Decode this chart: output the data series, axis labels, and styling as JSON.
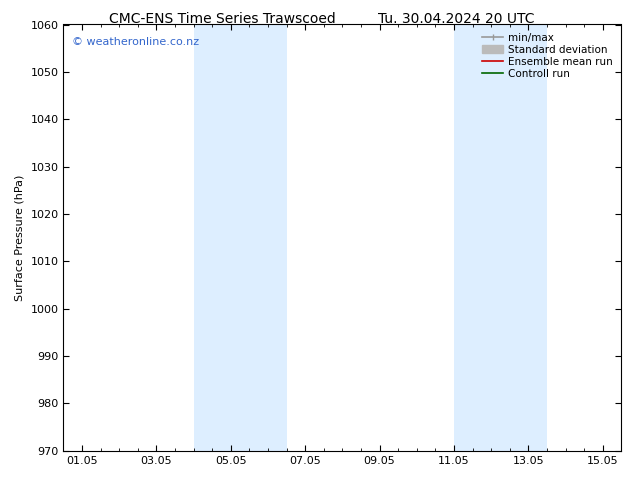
{
  "title_left": "CMC-ENS Time Series Trawscoed",
  "title_right": "Tu. 30.04.2024 20 UTC",
  "ylabel": "Surface Pressure (hPa)",
  "ylim": [
    970,
    1060
  ],
  "yticks": [
    970,
    980,
    990,
    1000,
    1010,
    1020,
    1030,
    1040,
    1050,
    1060
  ],
  "xtick_labels": [
    "01.05",
    "03.05",
    "05.05",
    "07.05",
    "09.05",
    "11.05",
    "13.05",
    "15.05"
  ],
  "xtick_positions": [
    0,
    2,
    4,
    6,
    8,
    10,
    12,
    14
  ],
  "xlim": [
    -0.5,
    14.5
  ],
  "shaded_bands": [
    {
      "x_start": 3.0,
      "x_end": 5.5
    },
    {
      "x_start": 10.0,
      "x_end": 12.5
    }
  ],
  "shade_color": "#ddeeff",
  "watermark": "© weatheronline.co.nz",
  "watermark_color": "#3366cc",
  "legend_items": [
    {
      "label": "min/max",
      "color": "#999999",
      "lw": 1.2
    },
    {
      "label": "Standard deviation",
      "color": "#bbbbbb",
      "lw": 5
    },
    {
      "label": "Ensemble mean run",
      "color": "#cc0000",
      "lw": 1.2
    },
    {
      "label": "Controll run",
      "color": "#006600",
      "lw": 1.2
    }
  ],
  "bg_color": "#ffffff",
  "title_fontsize": 10,
  "tick_fontsize": 8,
  "ylabel_fontsize": 8,
  "watermark_fontsize": 8,
  "legend_fontsize": 7.5
}
